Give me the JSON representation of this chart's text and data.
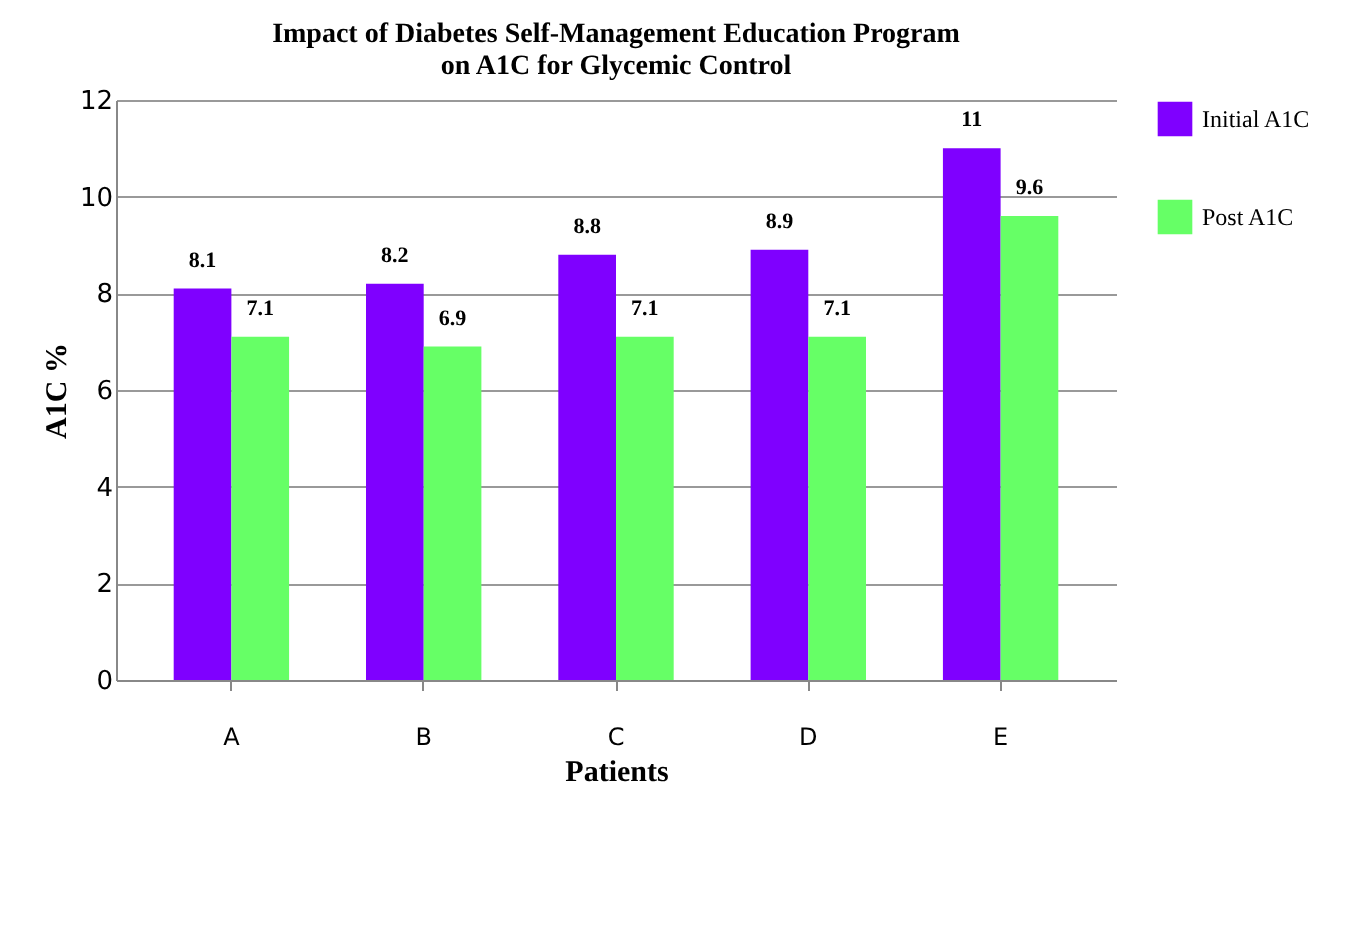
{
  "chart_data": {
    "type": "bar",
    "title": "Impact of Diabetes Self-Management Education Program on A1C for Glycemic Control",
    "xlabel": "Patients",
    "ylabel": "A1C %",
    "categories": [
      "A",
      "B",
      "C",
      "D",
      "E"
    ],
    "series": [
      {
        "name": "Initial A1C",
        "color": "#7f00ff",
        "values": [
          8.1,
          8.2,
          8.8,
          8.9,
          11
        ]
      },
      {
        "name": "Post A1C",
        "color": "#66ff66",
        "values": [
          7.1,
          6.9,
          7.1,
          7.1,
          9.6
        ]
      }
    ],
    "ylim": [
      0,
      12
    ],
    "yticks": [
      0,
      2,
      4,
      6,
      8,
      10,
      12
    ],
    "grid": "y",
    "legend": "right",
    "data_labels": true
  }
}
